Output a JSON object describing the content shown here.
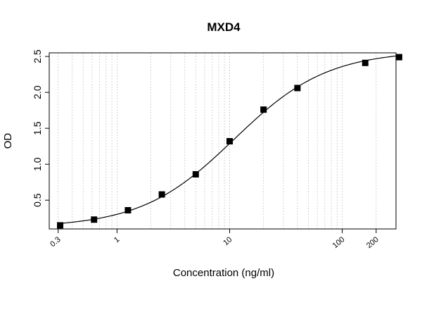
{
  "chart_data": {
    "type": "scatter",
    "title": "MXD4",
    "xlabel": "Concentration (ng/ml)",
    "ylabel": "OD",
    "x_scale": "log",
    "xlim": [
      0.25,
      300
    ],
    "ylim": [
      0.1,
      2.55
    ],
    "grid": "vertical-dotted",
    "x_ticks": [
      {
        "value": 0.3,
        "label": "0.3"
      },
      {
        "value": 1,
        "label": "1"
      },
      {
        "value": 10,
        "label": "10"
      },
      {
        "value": 100,
        "label": "100"
      },
      {
        "value": 200,
        "label": "200"
      }
    ],
    "y_ticks": [
      {
        "value": 0.5,
        "label": "0.5"
      },
      {
        "value": 1.0,
        "label": "1.0"
      },
      {
        "value": 1.5,
        "label": "1.5"
      },
      {
        "value": 2.0,
        "label": "2.0"
      },
      {
        "value": 2.5,
        "label": "2.5"
      }
    ],
    "points": [
      {
        "x": 0.3125,
        "y": 0.15
      },
      {
        "x": 0.625,
        "y": 0.23
      },
      {
        "x": 1.25,
        "y": 0.36
      },
      {
        "x": 2.5,
        "y": 0.58
      },
      {
        "x": 5,
        "y": 0.86
      },
      {
        "x": 10,
        "y": 1.32
      },
      {
        "x": 20,
        "y": 1.76
      },
      {
        "x": 40,
        "y": 2.06
      },
      {
        "x": 160,
        "y": 2.41
      },
      {
        "x": 320,
        "y": 2.49
      }
    ],
    "fit_curve": {
      "type": "4PL",
      "bottom": 0.12,
      "top": 2.58,
      "ec50": 11.0,
      "hill": 1.05
    }
  },
  "colors": {
    "marker": "#000000",
    "curve": "#000000",
    "grid": "#c8c8c8",
    "axis": "#000000"
  }
}
